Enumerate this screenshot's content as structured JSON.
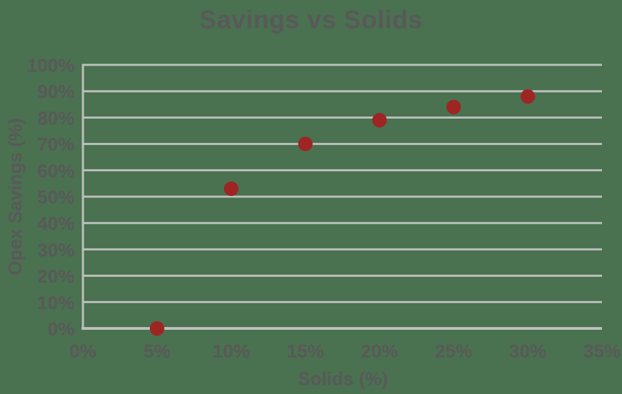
{
  "chart_data": {
    "type": "scatter",
    "title": "Savings vs Solids",
    "xlabel": "Solids (%)",
    "ylabel": "Opex Savings (%)",
    "x": [
      5,
      10,
      15,
      20,
      25,
      30
    ],
    "y": [
      0,
      53,
      70,
      79,
      84,
      88
    ],
    "xlim": [
      0,
      35
    ],
    "ylim": [
      0,
      100
    ],
    "xtick_values": [
      0,
      5,
      10,
      15,
      20,
      25,
      30,
      35
    ],
    "xtick_labels": [
      "0%",
      "5%",
      "10%",
      "15%",
      "20%",
      "25%",
      "30%",
      "35%"
    ],
    "ytick_values": [
      0,
      10,
      20,
      30,
      40,
      50,
      60,
      70,
      80,
      90,
      100
    ],
    "ytick_labels": [
      "0%",
      "10%",
      "20%",
      "30%",
      "40%",
      "50%",
      "60%",
      "70%",
      "80%",
      "90%",
      "100%"
    ],
    "grid": "horizontal-only",
    "legend": "none",
    "marker": "circle",
    "colors": {
      "background": "#4A7150",
      "point": "#9E2524",
      "gridline": "#BDC1BD",
      "axis": "#BDC1BD",
      "text": "#595959"
    }
  }
}
